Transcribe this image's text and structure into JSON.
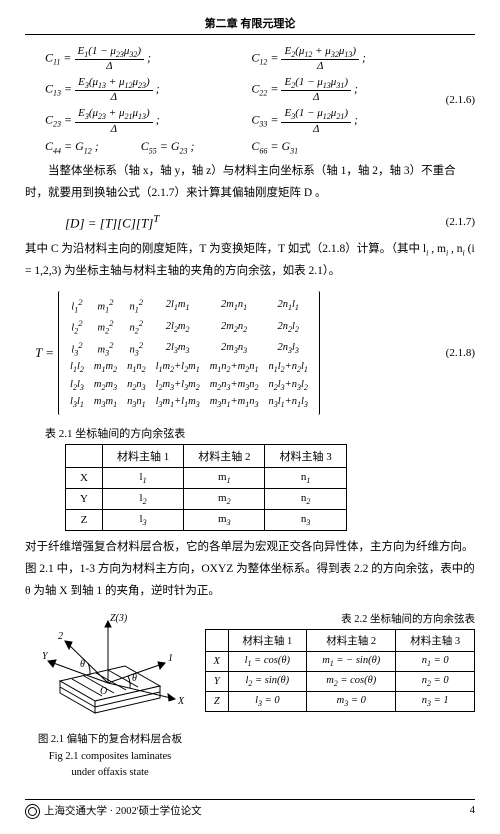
{
  "header": "第二章 有限元理论",
  "equations_216": {
    "cells": [
      "C<sub>11</sub> = <span class='frac'><span class='num'>E<sub>1</sub>(1 − μ<sub>23</sub>μ<sub>32</sub>)</span><span class='den'>Δ</span></span> ;",
      "C<sub>12</sub> = <span class='frac'><span class='num'>E<sub>2</sub>(μ<sub>12</sub> + μ<sub>32</sub>μ<sub>13</sub>)</span><span class='den'>Δ</span></span> ;",
      "C<sub>13</sub> = <span class='frac'><span class='num'>E<sub>3</sub>(μ<sub>13</sub> + μ<sub>12</sub>μ<sub>23</sub>)</span><span class='den'>Δ</span></span> ;",
      "C<sub>22</sub> = <span class='frac'><span class='num'>E<sub>2</sub>(1 − μ<sub>13</sub>μ<sub>31</sub>)</span><span class='den'>Δ</span></span> ;",
      "C<sub>23</sub> = <span class='frac'><span class='num'>E<sub>3</sub>(μ<sub>23</sub> + μ<sub>21</sub>μ<sub>13</sub>)</span><span class='den'>Δ</span></span> ;",
      "C<sub>33</sub> = <span class='frac'><span class='num'>E<sub>3</sub>(1 − μ<sub>12</sub>μ<sub>21</sub>)</span><span class='den'>Δ</span></span> ;",
      "C<sub>44</sub> = G<sub>12</sub> ;&nbsp;&nbsp;&nbsp;&nbsp;&nbsp;&nbsp;&nbsp;&nbsp;&nbsp;&nbsp;&nbsp;&nbsp;&nbsp;&nbsp;C<sub>55</sub> = G<sub>23</sub> ;",
      "C<sub>66</sub> = G<sub>31</sub>"
    ],
    "num": "(2.1.6)"
  },
  "para1": "当整体坐标系（轴 x，轴 y，轴 z）与材料主向坐标系（轴 1，轴 2，轴 3）不重合时，就要用到换轴公式（2.1.7）来计算其偏轴刚度矩阵 D 。",
  "eq_217": {
    "text": "[D] = [T][C][T]<sup>T</sup>",
    "num": "(2.1.7)"
  },
  "para2": "其中 C 为沿材料主向的刚度矩阵，T 为变换矩阵，T 如式（2.1.8）计算。（其中 l<sub>i</sub> , m<sub>i</sub> , n<sub>i</sub> (i = 1,2,3) 为坐标主轴与材料主轴的夹角的方向余弦，如表 2.1）。",
  "matrix_218": {
    "label": "T =",
    "rows": [
      [
        "l<sub>1</sub><sup>2</sup>",
        "m<sub>1</sub><sup>2</sup>",
        "n<sub>1</sub><sup>2</sup>",
        "2l<sub>1</sub>m<sub>1</sub>",
        "2m<sub>1</sub>n<sub>1</sub>",
        "2n<sub>1</sub>l<sub>1</sub>"
      ],
      [
        "l<sub>2</sub><sup>2</sup>",
        "m<sub>2</sub><sup>2</sup>",
        "n<sub>2</sub><sup>2</sup>",
        "2l<sub>2</sub>m<sub>2</sub>",
        "2m<sub>2</sub>n<sub>2</sub>",
        "2n<sub>2</sub>l<sub>2</sub>"
      ],
      [
        "l<sub>3</sub><sup>2</sup>",
        "m<sub>3</sub><sup>2</sup>",
        "n<sub>3</sub><sup>2</sup>",
        "2l<sub>3</sub>m<sub>3</sub>",
        "2m<sub>3</sub>n<sub>3</sub>",
        "2n<sub>3</sub>l<sub>3</sub>"
      ],
      [
        "l<sub>1</sub>l<sub>2</sub>",
        "m<sub>1</sub>m<sub>2</sub>",
        "n<sub>1</sub>n<sub>2</sub>",
        "l<sub>1</sub>m<sub>2</sub>+l<sub>2</sub>m<sub>1</sub>",
        "m<sub>1</sub>n<sub>2</sub>+m<sub>2</sub>n<sub>1</sub>",
        "n<sub>1</sub>l<sub>2</sub>+n<sub>2</sub>l<sub>1</sub>"
      ],
      [
        "l<sub>2</sub>l<sub>3</sub>",
        "m<sub>2</sub>m<sub>3</sub>",
        "n<sub>2</sub>n<sub>3</sub>",
        "l<sub>2</sub>m<sub>3</sub>+l<sub>3</sub>m<sub>2</sub>",
        "m<sub>2</sub>n<sub>3</sub>+m<sub>3</sub>n<sub>2</sub>",
        "n<sub>2</sub>l<sub>3</sub>+n<sub>3</sub>l<sub>2</sub>"
      ],
      [
        "l<sub>3</sub>l<sub>1</sub>",
        "m<sub>3</sub>m<sub>1</sub>",
        "n<sub>3</sub>n<sub>1</sub>",
        "l<sub>3</sub>m<sub>1</sub>+l<sub>1</sub>m<sub>3</sub>",
        "m<sub>3</sub>n<sub>1</sub>+m<sub>1</sub>n<sub>3</sub>",
        "n<sub>3</sub>l<sub>1</sub>+n<sub>1</sub>l<sub>3</sub>"
      ]
    ],
    "num": "(2.1.8)"
  },
  "table21": {
    "title": "表 2.1 坐标轴间的方向余弦表",
    "headers": [
      "",
      "材料主轴 1",
      "材料主轴 2",
      "材料主轴 3"
    ],
    "rows": [
      [
        "X",
        "l<sub>1</sub>",
        "m<sub>1</sub>",
        "n<sub>1</sub>"
      ],
      [
        "Y",
        "l<sub>2</sub>",
        "m<sub>2</sub>",
        "n<sub>2</sub>"
      ],
      [
        "Z",
        "l<sub>3</sub>",
        "m<sub>3</sub>",
        "n<sub>3</sub>"
      ]
    ]
  },
  "para3": "对于纤维增强复合材料层合板，它的各单层为宏观正交各向异性体，主方向为纤维方向。图 2.1 中，1-3 方向为材料主方向，OXYZ 为整体坐标系。得到表 2.2 的方向余弦，表中的 θ 为轴 X 到轴 1 的夹角，逆时针为正。",
  "figure21": {
    "caption_cn": "图 2.1 偏轴下的复合材料层合板",
    "caption_en1": "Fig 2.1 composites laminates",
    "caption_en2": "under offaxis state",
    "labels": {
      "Z3": "Z(3)",
      "Y": "Y",
      "X": "X",
      "one": "1",
      "two": "2",
      "theta": "θ",
      "O": "O"
    }
  },
  "table22": {
    "title": "表 2.2 坐标轴间的方向余弦表",
    "headers": [
      "",
      "材料主轴 1",
      "材料主轴 2",
      "材料主轴 3"
    ],
    "rows": [
      [
        "X",
        "l<sub>1</sub> = cos(θ)",
        "m<sub>1</sub> = − sin(θ)",
        "n<sub>1</sub> = 0"
      ],
      [
        "Y",
        "l<sub>2</sub> = sin(θ)",
        "m<sub>2</sub> = cos(θ)",
        "n<sub>2</sub> = 0"
      ],
      [
        "Z",
        "l<sub>3</sub> = 0",
        "m<sub>3</sub> = 0",
        "n<sub>3</sub> = 1"
      ]
    ]
  },
  "footer": {
    "text": "上海交通大学 · 2002'硕士学位论文",
    "page": "4"
  }
}
